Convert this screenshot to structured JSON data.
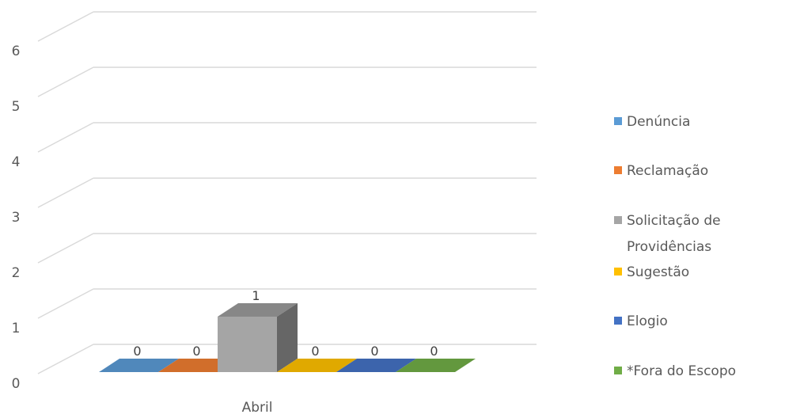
{
  "chart_data": {
    "type": "bar",
    "subtype": "3d-clustered-column",
    "categories": [
      "Abril"
    ],
    "series": [
      {
        "name": "Denúncia",
        "values": [
          0
        ],
        "color": "#5b9bd5"
      },
      {
        "name": "Reclamação",
        "values": [
          0
        ],
        "color": "#ed7d31"
      },
      {
        "name": "Solicitação de Providências",
        "values": [
          1
        ],
        "color": "#a5a5a5"
      },
      {
        "name": "Sugestão",
        "values": [
          0
        ],
        "color": "#ffc000"
      },
      {
        "name": "Elogio",
        "values": [
          0
        ],
        "color": "#4472c4"
      },
      {
        "name": "*Fora do Escopo",
        "values": [
          0
        ],
        "color": "#70ad47"
      }
    ],
    "ylim": [
      0,
      6
    ],
    "yticks": [
      0,
      1,
      2,
      3,
      4,
      5,
      6
    ],
    "grid": true,
    "data_labels": true,
    "legend": "right"
  }
}
